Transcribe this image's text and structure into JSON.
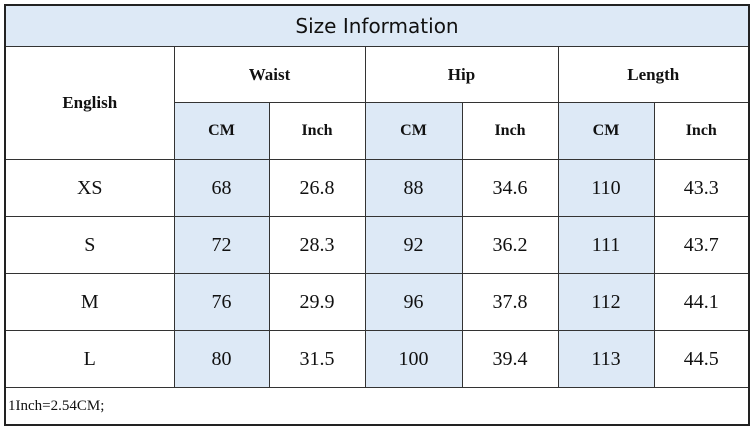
{
  "title": "Size Information",
  "table": {
    "header": [
      "English",
      "Waist",
      "Hip",
      "Length"
    ],
    "subheader": [
      "CM",
      "Inch",
      "CM",
      "Inch",
      "CM",
      "Inch"
    ],
    "rows": [
      [
        "XS",
        68,
        26.8,
        88,
        34.6,
        110,
        43.3
      ],
      [
        "S",
        72,
        28.3,
        92,
        36.2,
        111,
        43.7
      ],
      [
        "M",
        76,
        29.9,
        96,
        37.8,
        112,
        44.1
      ],
      [
        "L",
        80,
        31.5,
        100,
        39.4,
        113,
        44.5
      ]
    ]
  },
  "note": "1Inch=2.54CM;"
}
